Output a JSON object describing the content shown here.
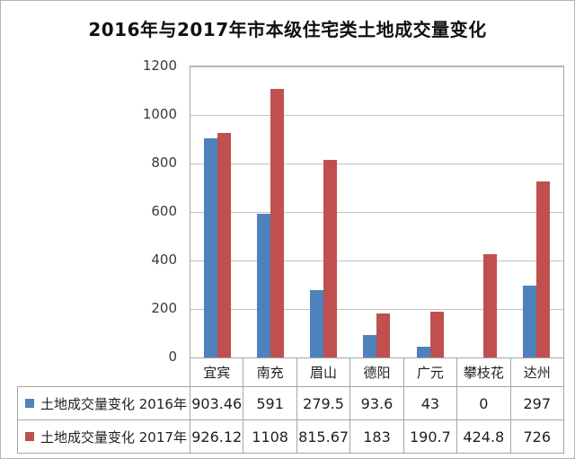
{
  "chart_data": {
    "type": "bar",
    "title": "2016年与2017年市本级住宅类土地成交量变化",
    "categories": [
      "宜宾",
      "南充",
      "眉山",
      "德阳",
      "广元",
      "攀枝花",
      "达州"
    ],
    "series": [
      {
        "name": "土地成交量变化 2016年",
        "color": "#4F81BD",
        "values": [
          903.46,
          591,
          279.5,
          93.6,
          43,
          0,
          297
        ]
      },
      {
        "name": "土地成交量变化 2017年",
        "color": "#C0504D",
        "values": [
          926.12,
          1108,
          815.67,
          183,
          190.7,
          424.8,
          726
        ]
      }
    ],
    "xlabel": "",
    "ylabel": "",
    "ylim": [
      0,
      1200
    ],
    "yticks": [
      0,
      200,
      400,
      600,
      800,
      1000,
      1200
    ],
    "grid": true,
    "legend_position": "data-table-left",
    "data_table_shown": true
  },
  "colors": {
    "series_2016": "#4F81BD",
    "series_2017": "#C0504D",
    "gridline": "#c3c3c3",
    "plot_border": "#a6a6a6",
    "table_border": "#a6a6a6",
    "text": "#262626"
  }
}
